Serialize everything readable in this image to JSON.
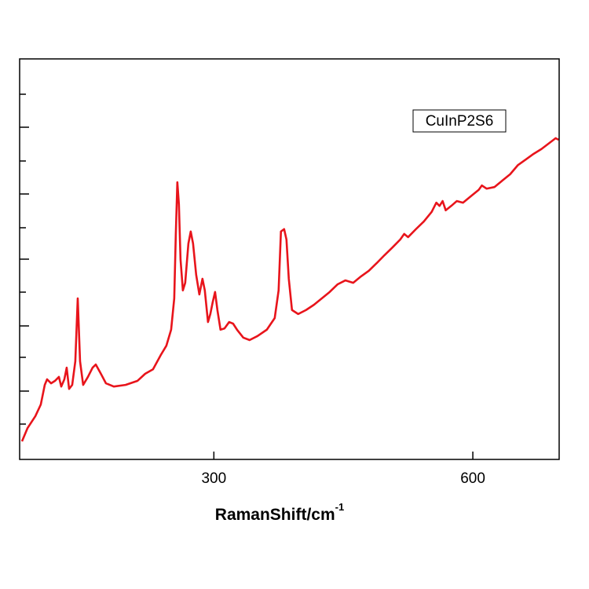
{
  "chart_data": {
    "type": "line",
    "xlabel": "RamanShift/cm",
    "xlabel_superscript": "-1",
    "xlim": [
      75,
      700
    ],
    "xticks": [
      300,
      600
    ],
    "ylim": [
      0,
      100
    ],
    "series": [
      {
        "name": "CuInP2S6",
        "color": "#e8141b",
        "x": [
          77.7,
          84.1,
          93.2,
          99.5,
          104.1,
          106.8,
          111.4,
          115.9,
          120.5,
          123.2,
          126.8,
          129.5,
          132.3,
          135.9,
          139.5,
          142.3,
          145.0,
          148.6,
          154.1,
          159.5,
          163.2,
          168.6,
          175.0,
          184.1,
          197.7,
          211.4,
          220.5,
          229.5,
          238.6,
          245.0,
          250.5,
          254.1,
          255.9,
          257.7,
          259.5,
          261.4,
          264.1,
          266.8,
          270.5,
          273.2,
          275.9,
          279.5,
          283.2,
          286.8,
          289.5,
          293.2,
          295.9,
          298.6,
          301.4,
          304.1,
          307.7,
          312.3,
          317.7,
          322.3,
          326.8,
          334.1,
          341.4,
          350.5,
          361.4,
          370.5,
          375.0,
          377.7,
          381.4,
          384.1,
          386.8,
          390.5,
          397.7,
          406.8,
          415.9,
          425.0,
          434.1,
          443.2,
          452.3,
          461.4,
          470.5,
          479.5,
          488.6,
          497.7,
          506.8,
          515.9,
          520.5,
          525.0,
          534.1,
          543.2,
          552.3,
          557.7,
          561.4,
          565.0,
          568.6,
          575.0,
          581.4,
          588.6,
          597.7,
          606.8,
          610.5,
          615.9,
          625.0,
          634.1,
          643.2,
          652.3,
          661.4,
          670.5,
          679.5,
          688.6,
          695.9,
          699.5
        ],
        "values": [
          4.5,
          7.8,
          10.8,
          13.7,
          18.6,
          20.0,
          19.0,
          19.6,
          20.6,
          18.2,
          20.0,
          22.9,
          17.6,
          18.6,
          24.5,
          40.2,
          24.5,
          18.6,
          20.6,
          22.9,
          23.7,
          21.6,
          19.0,
          18.2,
          18.6,
          19.6,
          21.4,
          22.5,
          26.1,
          28.4,
          32.4,
          40.2,
          56.1,
          69.2,
          63.7,
          49.9,
          42.2,
          44.1,
          53.9,
          56.9,
          53.9,
          46.1,
          41.2,
          45.1,
          42.2,
          34.3,
          36.3,
          39.2,
          41.8,
          37.3,
          32.4,
          32.7,
          34.3,
          33.9,
          32.4,
          30.4,
          29.8,
          30.8,
          32.4,
          35.3,
          42.2,
          56.9,
          57.5,
          54.9,
          45.1,
          37.3,
          36.3,
          37.3,
          38.6,
          40.2,
          41.8,
          43.7,
          44.7,
          44.1,
          45.7,
          47.1,
          49.0,
          51.0,
          52.9,
          54.9,
          56.3,
          55.5,
          57.5,
          59.4,
          61.8,
          64.1,
          63.3,
          64.5,
          62.2,
          63.3,
          64.5,
          64.1,
          65.7,
          67.3,
          68.4,
          67.6,
          68.0,
          69.6,
          71.2,
          73.5,
          74.9,
          76.3,
          77.5,
          79.0,
          80.2,
          79.8
        ]
      }
    ]
  }
}
